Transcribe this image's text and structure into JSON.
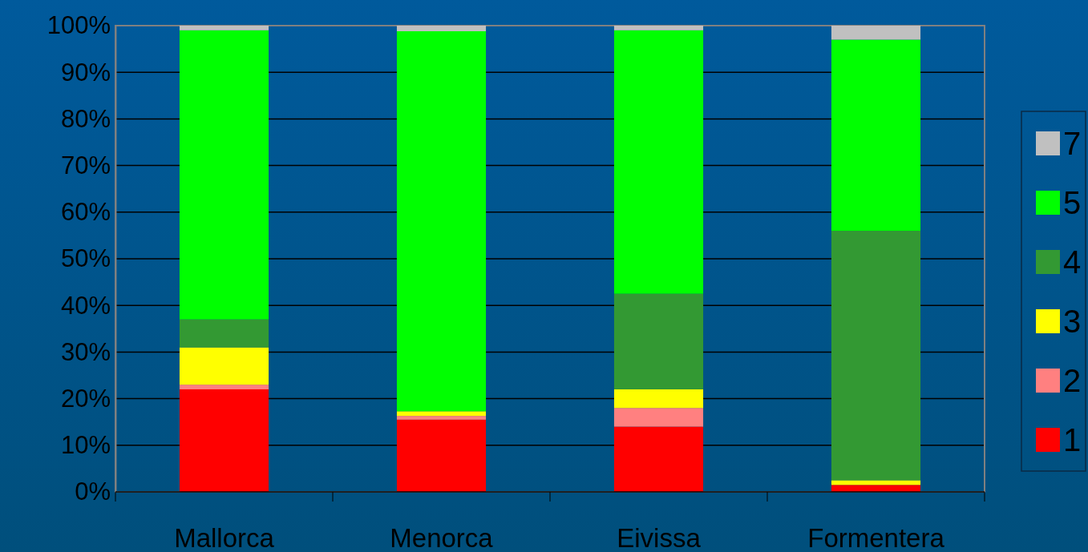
{
  "chart_data": {
    "type": "bar",
    "stacked": true,
    "categories": [
      "Mallorca",
      "Menorca",
      "Eivissa",
      "Formentera"
    ],
    "series": [
      {
        "name": "1",
        "color": "#ff0000",
        "values": [
          22,
          15.5,
          14,
          1.5
        ]
      },
      {
        "name": "2",
        "color": "#ff8080",
        "values": [
          1,
          0.8,
          4,
          0
        ]
      },
      {
        "name": "3",
        "color": "#ffff00",
        "values": [
          8,
          1,
          4,
          1
        ]
      },
      {
        "name": "4",
        "color": "#339933",
        "values": [
          6,
          0,
          20.5,
          53.5
        ]
      },
      {
        "name": "5",
        "color": "#00ff00",
        "values": [
          62,
          81.5,
          56.5,
          41
        ]
      },
      {
        "name": "7",
        "color": "#c0c0c0",
        "values": [
          1,
          1.2,
          1,
          3
        ]
      }
    ],
    "ylim": [
      0,
      100
    ],
    "yticks": [
      {
        "value": 0,
        "label": "0%"
      },
      {
        "value": 10,
        "label": "10%"
      },
      {
        "value": 20,
        "label": "20%"
      },
      {
        "value": 30,
        "label": "30%"
      },
      {
        "value": 40,
        "label": "40%"
      },
      {
        "value": 50,
        "label": "50%"
      },
      {
        "value": 60,
        "label": "60%"
      },
      {
        "value": 70,
        "label": "70%"
      },
      {
        "value": 80,
        "label": "80%"
      },
      {
        "value": 90,
        "label": "90%"
      },
      {
        "value": 100,
        "label": "100%"
      }
    ],
    "grid": "y",
    "legend": "right"
  }
}
